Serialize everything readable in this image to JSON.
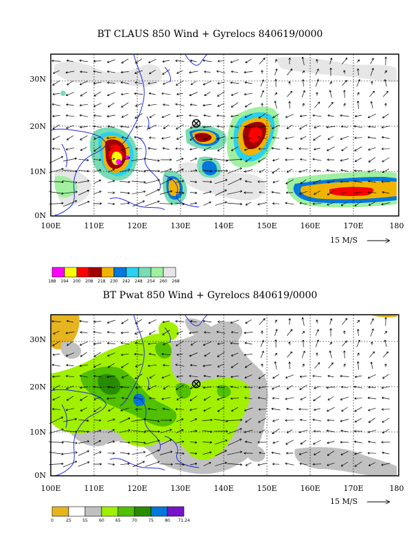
{
  "panels": [
    {
      "title": "BT CLAUS 850 Wind + Gyrelocs 840619/0000",
      "x_ticks": [
        "100E",
        "110E",
        "120E",
        "130E",
        "140E",
        "150E",
        "160E",
        "170E",
        "180"
      ],
      "y_ticks": [
        "0N",
        "10N",
        "20N",
        "30N"
      ],
      "vector_ref": "15 M/S",
      "colorbar_colors": [
        "#ff00ff",
        "#ffff00",
        "#ff0000",
        "#a00000",
        "#f0b400",
        "#0078dc",
        "#28d2f0",
        "#78dcb4",
        "#a0f0a0",
        "#e6e6e6"
      ],
      "colorbar_labels": [
        "188",
        "194",
        "200",
        "208",
        "218",
        "230",
        "242",
        "248",
        "254",
        "260",
        "268"
      ]
    },
    {
      "title": "BT Pwat 850 Wind + Gyrelocs 840619/0000",
      "x_ticks": [
        "100E",
        "110E",
        "120E",
        "130E",
        "140E",
        "150E",
        "160E",
        "170E",
        "180"
      ],
      "y_ticks": [
        "0N",
        "10N",
        "20N",
        "30N"
      ],
      "vector_ref": "15 M/S",
      "colorbar_colors": [
        "#e6b41e",
        "#ffffff",
        "#c0c0c0",
        "#a0f000",
        "#50c000",
        "#288c00",
        "#0078dc",
        "#7814c8"
      ],
      "colorbar_labels": [
        "0",
        "25",
        "55",
        "60",
        "65",
        "70",
        "75",
        "80",
        "71.24"
      ]
    }
  ],
  "gyre_location": {
    "lon": 133,
    "lat": 20
  },
  "map_extent": {
    "lon": [
      100,
      180
    ],
    "lat": [
      0,
      36
    ]
  }
}
